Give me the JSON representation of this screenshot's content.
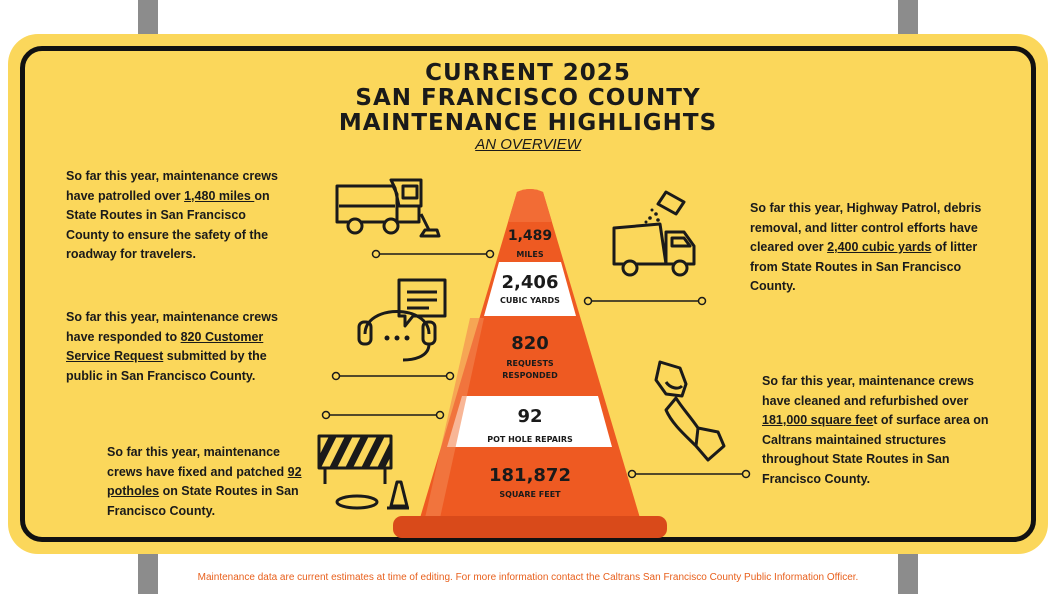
{
  "title": {
    "line1": "CURRENT 2025",
    "line2": "SAN FRANCISCO COUNTY",
    "line3": "MAINTENANCE HIGHLIGHTS",
    "subtitle": "AN OVERVIEW"
  },
  "blocks": {
    "miles": {
      "pre": "So far this year, maintenance crews have patrolled over ",
      "link": "1,480 miles ",
      "post": "on State Routes in San Francisco County to ensure the safety of the roadway for travelers."
    },
    "litter": {
      "pre": "So far this year, Highway Patrol, debris removal, and litter control efforts have cleared over ",
      "link": "2,400 cubic yards",
      "post": " of litter from State Routes in San Francisco County."
    },
    "requests": {
      "pre": "So far this year, maintenance crews have responded to ",
      "link": "820 Customer Service Request",
      "post": " submitted by the public in San Francisco County."
    },
    "surface": {
      "pre": "So far this year, maintenance crews have cleaned and refurbished over ",
      "link": "181,000 square fee",
      "post": "t of surface area on Caltrans maintained structures throughout State Routes in San Francisco County."
    },
    "potholes": {
      "pre": "So far this year, maintenance crews have fixed and patched ",
      "link": "92 potholes",
      "post": " on State Routes in San Francisco County."
    }
  },
  "cone": {
    "s1": {
      "value": "1,489",
      "label": "MILES"
    },
    "s2": {
      "value": "2,406",
      "label": "CUBIC YARDS"
    },
    "s3": {
      "value": "820",
      "label1": "REQUESTS",
      "label2": "RESPONDED"
    },
    "s4": {
      "value": "92",
      "label": "POT HOLE REPAIRS"
    },
    "s5": {
      "value": "181,872",
      "label": "SQUARE FEET"
    }
  },
  "footer": "Maintenance data are current estimates at time of editing. For more information contact the Caltrans San Francisco County Public Information Officer.",
  "colors": {
    "sign": "#fbd75b",
    "cone_orange": "#ee5a22",
    "cone_dark": "#d94a1a",
    "footer": "#e8601d"
  },
  "icons": [
    "street-sweeper-icon",
    "garbage-truck-icon",
    "headset-chat-icon",
    "cleaning-glove-icon",
    "road-barricade-icon"
  ]
}
